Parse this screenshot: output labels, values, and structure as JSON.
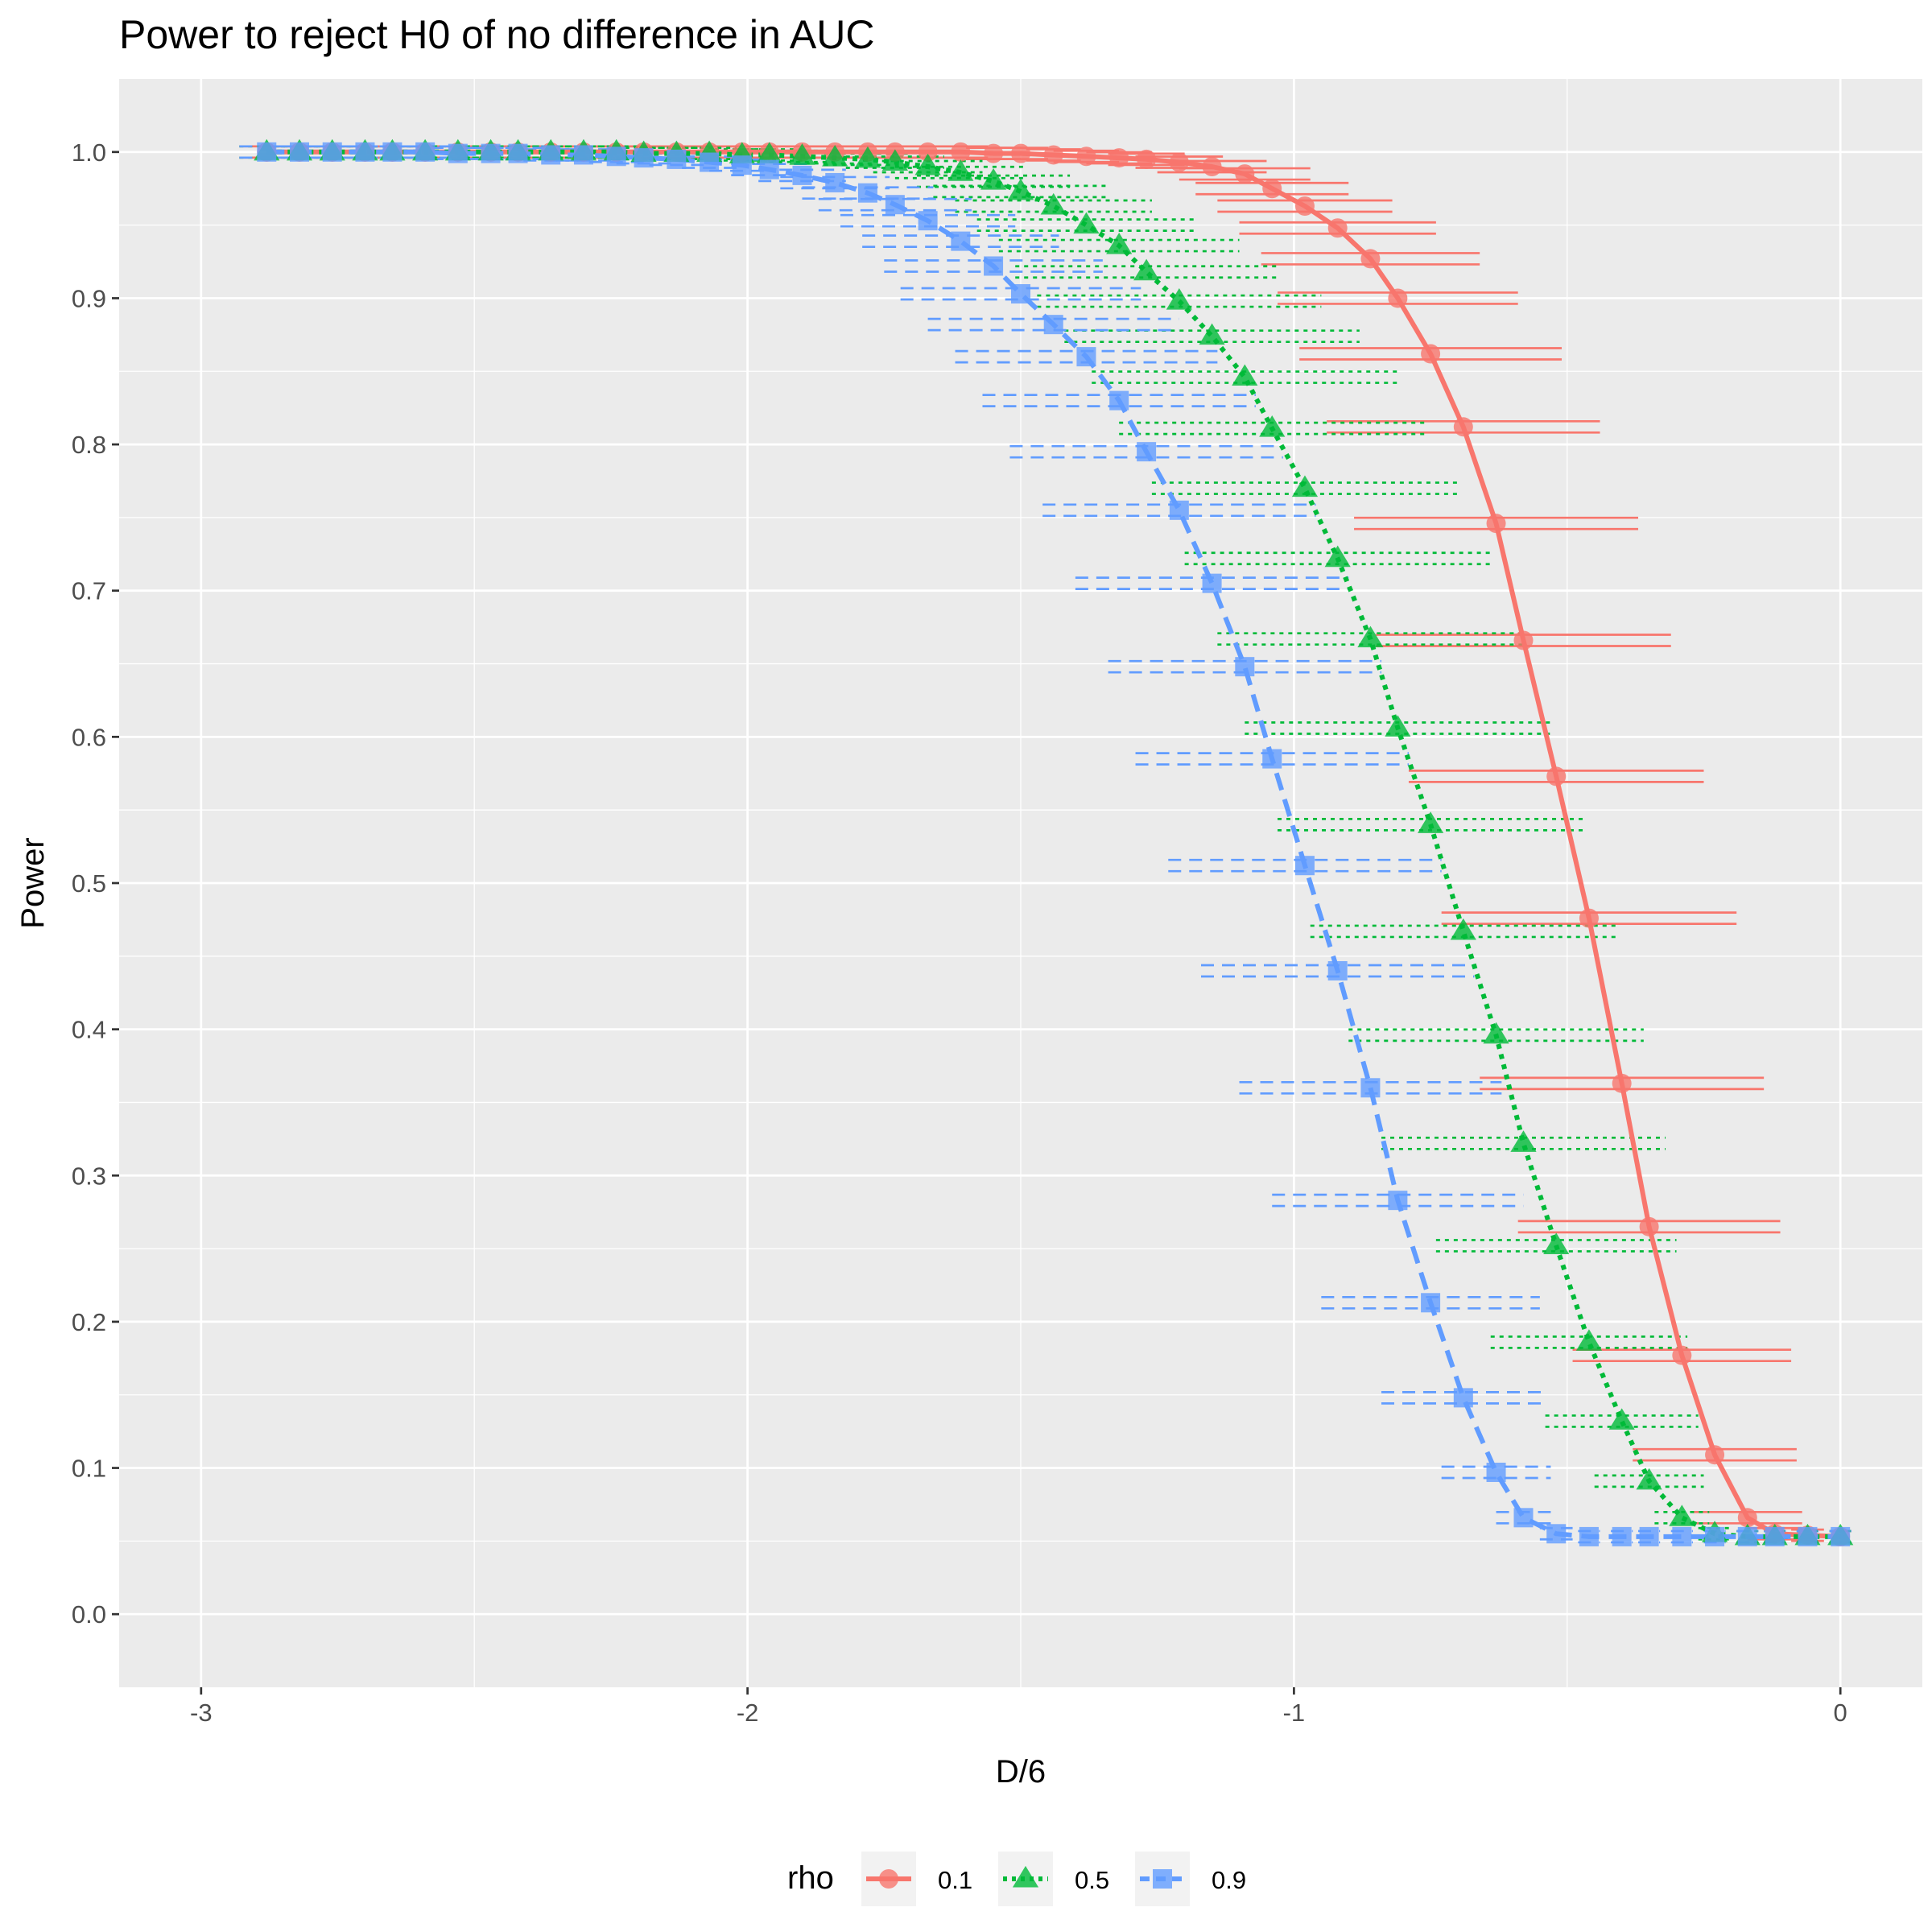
{
  "chart_data": {
    "type": "line",
    "title": "Power to reject H0 of no difference in AUC",
    "xlabel": "D/6",
    "ylabel": "Power",
    "xlim": [
      -3.15,
      0.15
    ],
    "ylim": [
      -0.05,
      1.05
    ],
    "x_ticks": [
      {
        "value": -3,
        "label": "-3"
      },
      {
        "value": -2,
        "label": "-2"
      },
      {
        "value": -1,
        "label": "-1"
      },
      {
        "value": 0,
        "label": "0"
      }
    ],
    "y_ticks": [
      {
        "value": 0.0,
        "label": "0.0"
      },
      {
        "value": 0.1,
        "label": "0.1"
      },
      {
        "value": 0.2,
        "label": "0.2"
      },
      {
        "value": 0.3,
        "label": "0.3"
      },
      {
        "value": 0.4,
        "label": "0.4"
      },
      {
        "value": 0.5,
        "label": "0.5"
      },
      {
        "value": 0.6,
        "label": "0.6"
      },
      {
        "value": 0.7,
        "label": "0.7"
      },
      {
        "value": 0.8,
        "label": "0.8"
      },
      {
        "value": 0.9,
        "label": "0.9"
      },
      {
        "value": 1.0,
        "label": "1.0"
      }
    ],
    "grid": true,
    "legend": {
      "title": "rho",
      "position": "bottom"
    },
    "x": [
      -2.88,
      -2.82,
      -2.76,
      -2.7,
      -2.65,
      -2.59,
      -2.53,
      -2.47,
      -2.42,
      -2.36,
      -2.3,
      -2.24,
      -2.19,
      -2.13,
      -2.07,
      -2.01,
      -1.96,
      -1.9,
      -1.84,
      -1.78,
      -1.73,
      -1.67,
      -1.61,
      -1.55,
      -1.5,
      -1.44,
      -1.38,
      -1.32,
      -1.27,
      -1.21,
      -1.15,
      -1.09,
      -1.04,
      -0.98,
      -0.92,
      -0.86,
      -0.81,
      -0.75,
      -0.69,
      -0.63,
      -0.58,
      -0.52,
      -0.46,
      -0.4,
      -0.35,
      -0.29,
      -0.23,
      -0.17,
      -0.12,
      -0.06,
      0.0
    ],
    "series": [
      {
        "name": "0.1",
        "color": "#F8766D",
        "marker": "circle",
        "line_style": "solid",
        "values": [
          1.0,
          1.0,
          1.0,
          1.0,
          1.0,
          1.0,
          1.0,
          1.0,
          1.0,
          1.0,
          1.0,
          1.0,
          1.0,
          1.0,
          1.0,
          1.0,
          1.0,
          1.0,
          1.0,
          1.0,
          1.0,
          1.0,
          1.0,
          0.999,
          0.999,
          0.998,
          0.997,
          0.996,
          0.995,
          0.993,
          0.99,
          0.985,
          0.975,
          0.963,
          0.948,
          0.927,
          0.9,
          0.862,
          0.812,
          0.746,
          0.666,
          0.573,
          0.476,
          0.363,
          0.265,
          0.177,
          0.109,
          0.066,
          0.055,
          0.054,
          0.053
        ],
        "half_width": [
          0.05,
          0.05,
          0.05,
          0.05,
          0.05,
          0.05,
          0.05,
          0.05,
          0.05,
          0.05,
          0.05,
          0.05,
          0.05,
          0.05,
          0.05,
          0.05,
          0.05,
          0.05,
          0.05,
          0.05,
          0.05,
          0.05,
          0.05,
          0.05,
          0.05,
          0.05,
          0.06,
          0.06,
          0.07,
          0.08,
          0.1,
          0.12,
          0.14,
          0.16,
          0.18,
          0.2,
          0.22,
          0.24,
          0.25,
          0.26,
          0.27,
          0.27,
          0.27,
          0.26,
          0.24,
          0.2,
          0.15,
          0.1,
          0.05,
          0.03,
          0.02
        ]
      },
      {
        "name": "0.5",
        "color": "#00BA38",
        "marker": "triangle",
        "line_style": "dotted",
        "values": [
          1.0,
          1.0,
          1.0,
          1.0,
          1.0,
          1.0,
          1.0,
          1.0,
          1.0,
          1.0,
          1.0,
          1.0,
          0.999,
          0.999,
          0.999,
          0.998,
          0.998,
          0.997,
          0.996,
          0.995,
          0.993,
          0.99,
          0.986,
          0.98,
          0.973,
          0.963,
          0.95,
          0.936,
          0.918,
          0.898,
          0.874,
          0.846,
          0.811,
          0.77,
          0.722,
          0.667,
          0.606,
          0.54,
          0.467,
          0.396,
          0.322,
          0.252,
          0.186,
          0.132,
          0.091,
          0.066,
          0.055,
          0.053,
          0.053,
          0.053,
          0.053
        ],
        "half_width": [
          0.05,
          0.05,
          0.05,
          0.05,
          0.05,
          0.05,
          0.05,
          0.05,
          0.05,
          0.05,
          0.05,
          0.05,
          0.05,
          0.05,
          0.05,
          0.05,
          0.06,
          0.06,
          0.07,
          0.08,
          0.09,
          0.1,
          0.12,
          0.14,
          0.16,
          0.18,
          0.2,
          0.22,
          0.24,
          0.26,
          0.27,
          0.28,
          0.28,
          0.28,
          0.28,
          0.28,
          0.28,
          0.28,
          0.28,
          0.27,
          0.26,
          0.22,
          0.18,
          0.14,
          0.1,
          0.05,
          0.03,
          0.02,
          0.02,
          0.02,
          0.02
        ]
      },
      {
        "name": "0.9",
        "color": "#619CFF",
        "marker": "square",
        "line_style": "dashed",
        "values": [
          1.0,
          1.0,
          1.0,
          1.0,
          1.0,
          1.0,
          0.999,
          0.999,
          0.999,
          0.998,
          0.998,
          0.997,
          0.996,
          0.995,
          0.993,
          0.991,
          0.988,
          0.984,
          0.979,
          0.972,
          0.964,
          0.953,
          0.939,
          0.922,
          0.903,
          0.882,
          0.86,
          0.83,
          0.795,
          0.755,
          0.705,
          0.648,
          0.585,
          0.512,
          0.44,
          0.36,
          0.283,
          0.213,
          0.148,
          0.097,
          0.066,
          0.055,
          0.053,
          0.053,
          0.053,
          0.053,
          0.053,
          0.053,
          0.053,
          0.053,
          0.053
        ],
        "half_width": [
          0.05,
          0.05,
          0.05,
          0.05,
          0.05,
          0.05,
          0.05,
          0.05,
          0.05,
          0.05,
          0.05,
          0.05,
          0.05,
          0.05,
          0.05,
          0.06,
          0.07,
          0.08,
          0.1,
          0.12,
          0.14,
          0.16,
          0.18,
          0.2,
          0.22,
          0.23,
          0.24,
          0.25,
          0.25,
          0.25,
          0.25,
          0.25,
          0.25,
          0.25,
          0.25,
          0.24,
          0.23,
          0.2,
          0.15,
          0.1,
          0.05,
          0.03,
          0.02,
          0.02,
          0.02,
          0.02,
          0.02,
          0.02,
          0.02,
          0.02,
          0.02
        ]
      }
    ]
  },
  "colors": {
    "panel_background": "#EBEBEB",
    "grid_major": "#FFFFFF",
    "tick_text": "#4D4D4D"
  }
}
